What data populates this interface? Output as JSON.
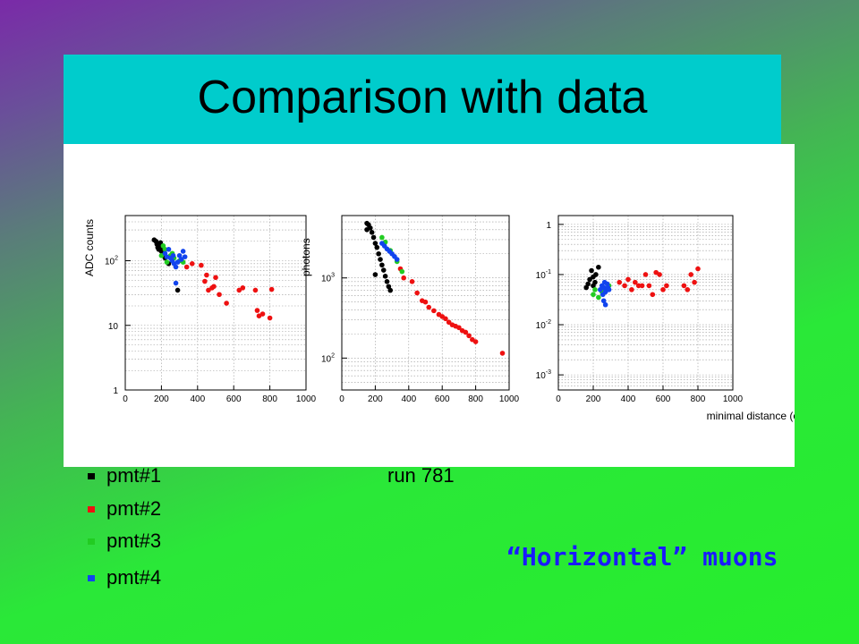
{
  "slide": {
    "title": "Comparison with data"
  },
  "legend": [
    {
      "label": "pmt#1",
      "color": "#000000"
    },
    {
      "label": "pmt#2",
      "color": "#ee1111"
    },
    {
      "label": "pmt#3",
      "color": "#22cc22"
    },
    {
      "label": "pmt#4",
      "color": "#1144ee"
    }
  ],
  "run_label": "run 781",
  "caption": "“Horizontal” muons",
  "chart_data": [
    {
      "type": "scatter",
      "ylabel": "ADC counts",
      "xlabel": "",
      "xlim": [
        0,
        1000
      ],
      "ylim": [
        1,
        500
      ],
      "yscale": "log",
      "grid": true,
      "xticks": [
        "0",
        "200",
        "400",
        "600",
        "800",
        "1000"
      ],
      "yticks": [
        {
          "v": 1,
          "base": "1",
          "exp": ""
        },
        {
          "v": 10,
          "base": "10",
          "exp": ""
        },
        {
          "v": 100,
          "base": "10",
          "exp": "2"
        }
      ],
      "series": [
        {
          "color": "#000000",
          "points": [
            [
              160,
              210
            ],
            [
              170,
              200
            ],
            [
              175,
              180
            ],
            [
              180,
              160
            ],
            [
              185,
              150
            ],
            [
              190,
              175
            ],
            [
              200,
              140
            ],
            [
              210,
              130
            ],
            [
              220,
              110
            ],
            [
              240,
              90
            ],
            [
              290,
              35
            ],
            [
              200,
              150
            ],
            [
              195,
              190
            ]
          ]
        },
        {
          "color": "#ee1111",
          "points": [
            [
              340,
              80
            ],
            [
              370,
              90
            ],
            [
              420,
              85
            ],
            [
              440,
              48
            ],
            [
              450,
              60
            ],
            [
              460,
              35
            ],
            [
              480,
              38
            ],
            [
              490,
              40
            ],
            [
              500,
              55
            ],
            [
              520,
              30
            ],
            [
              560,
              22
            ],
            [
              630,
              35
            ],
            [
              650,
              38
            ],
            [
              720,
              35
            ],
            [
              730,
              17
            ],
            [
              740,
              14
            ],
            [
              760,
              15
            ],
            [
              800,
              13
            ],
            [
              810,
              36
            ]
          ]
        },
        {
          "color": "#22cc22",
          "points": [
            [
              200,
              120
            ],
            [
              210,
              170
            ],
            [
              220,
              150
            ],
            [
              250,
              120
            ],
            [
              260,
              130
            ],
            [
              270,
              110
            ],
            [
              300,
              100
            ],
            [
              320,
              95
            ],
            [
              230,
              95
            ]
          ]
        },
        {
          "color": "#1144ee",
          "points": [
            [
              220,
              130
            ],
            [
              230,
              115
            ],
            [
              240,
              150
            ],
            [
              250,
              110
            ],
            [
              260,
              100
            ],
            [
              265,
              120
            ],
            [
              270,
              90
            ],
            [
              280,
              80
            ],
            [
              290,
              95
            ],
            [
              300,
              120
            ],
            [
              310,
              105
            ],
            [
              320,
              140
            ],
            [
              330,
              115
            ],
            [
              280,
              45
            ]
          ]
        }
      ]
    },
    {
      "type": "scatter",
      "ylabel": "photons",
      "xlabel": "",
      "xlim": [
        0,
        1000
      ],
      "ylim": [
        40,
        6000
      ],
      "yscale": "log",
      "grid": true,
      "xticks": [
        "0",
        "200",
        "400",
        "600",
        "800",
        "1000"
      ],
      "yticks": [
        {
          "v": 100,
          "base": "10",
          "exp": "2"
        },
        {
          "v": 1000,
          "base": "10",
          "exp": "3"
        }
      ],
      "series": [
        {
          "color": "#000000",
          "points": [
            [
              150,
              4800
            ],
            [
              160,
              4600
            ],
            [
              170,
              4200
            ],
            [
              180,
              3700
            ],
            [
              190,
              3200
            ],
            [
              200,
              2700
            ],
            [
              210,
              2400
            ],
            [
              220,
              2000
            ],
            [
              230,
              1700
            ],
            [
              240,
              1450
            ],
            [
              250,
              1250
            ],
            [
              260,
              1050
            ],
            [
              270,
              900
            ],
            [
              280,
              780
            ],
            [
              290,
              700
            ],
            [
              200,
              1100
            ],
            [
              150,
              4000
            ]
          ]
        },
        {
          "color": "#ee1111",
          "points": [
            [
              350,
              1300
            ],
            [
              370,
              1000
            ],
            [
              420,
              900
            ],
            [
              450,
              650
            ],
            [
              480,
              520
            ],
            [
              500,
              500
            ],
            [
              520,
              430
            ],
            [
              550,
              390
            ],
            [
              580,
              350
            ],
            [
              600,
              330
            ],
            [
              620,
              310
            ],
            [
              640,
              280
            ],
            [
              660,
              260
            ],
            [
              680,
              250
            ],
            [
              700,
              240
            ],
            [
              720,
              220
            ],
            [
              740,
              210
            ],
            [
              760,
              190
            ],
            [
              780,
              170
            ],
            [
              800,
              160
            ],
            [
              960,
              115
            ]
          ]
        },
        {
          "color": "#22cc22",
          "points": [
            [
              240,
              3200
            ],
            [
              260,
              2800
            ],
            [
              290,
              2200
            ],
            [
              330,
              1600
            ],
            [
              360,
              1200
            ]
          ]
        },
        {
          "color": "#1144ee",
          "points": [
            [
              240,
              2700
            ],
            [
              255,
              2500
            ],
            [
              270,
              2300
            ],
            [
              285,
              2150
            ],
            [
              300,
              2000
            ],
            [
              315,
              1850
            ],
            [
              330,
              1700
            ]
          ]
        }
      ]
    },
    {
      "type": "scatter",
      "ylabel": "",
      "xlabel": "minimal distance (cm)",
      "xlim": [
        0,
        1000
      ],
      "ylim": [
        0.0005,
        1.5
      ],
      "yscale": "log",
      "grid": true,
      "xticks": [
        "0",
        "200",
        "400",
        "600",
        "800",
        "1000"
      ],
      "yticks": [
        {
          "v": 0.001,
          "base": "10",
          "exp": "-3"
        },
        {
          "v": 0.01,
          "base": "10",
          "exp": "-2"
        },
        {
          "v": 0.1,
          "base": "10",
          "exp": "-1"
        },
        {
          "v": 1,
          "base": "1",
          "exp": ""
        }
      ],
      "series": [
        {
          "color": "#000000",
          "points": [
            [
              160,
              0.055
            ],
            [
              170,
              0.065
            ],
            [
              180,
              0.08
            ],
            [
              190,
              0.12
            ],
            [
              200,
              0.09
            ],
            [
              210,
              0.07
            ],
            [
              215,
              0.1
            ],
            [
              230,
              0.14
            ],
            [
              200,
              0.06
            ]
          ]
        },
        {
          "color": "#ee1111",
          "points": [
            [
              350,
              0.07
            ],
            [
              380,
              0.06
            ],
            [
              400,
              0.08
            ],
            [
              420,
              0.05
            ],
            [
              440,
              0.07
            ],
            [
              460,
              0.06
            ],
            [
              480,
              0.06
            ],
            [
              500,
              0.1
            ],
            [
              520,
              0.06
            ],
            [
              540,
              0.04
            ],
            [
              560,
              0.11
            ],
            [
              580,
              0.1
            ],
            [
              600,
              0.05
            ],
            [
              620,
              0.06
            ],
            [
              720,
              0.06
            ],
            [
              740,
              0.05
            ],
            [
              760,
              0.1
            ],
            [
              780,
              0.07
            ],
            [
              800,
              0.13
            ]
          ]
        },
        {
          "color": "#22cc22",
          "points": [
            [
              200,
              0.04
            ],
            [
              210,
              0.05
            ],
            [
              230,
              0.035
            ],
            [
              250,
              0.045
            ],
            [
              270,
              0.05
            ],
            [
              290,
              0.06
            ]
          ]
        },
        {
          "color": "#1144ee",
          "points": [
            [
              240,
              0.05
            ],
            [
              250,
              0.06
            ],
            [
              255,
              0.04
            ],
            [
              260,
              0.055
            ],
            [
              265,
              0.07
            ],
            [
              270,
              0.045
            ],
            [
              275,
              0.05
            ],
            [
              280,
              0.065
            ],
            [
              285,
              0.055
            ],
            [
              290,
              0.05
            ],
            [
              260,
              0.03
            ],
            [
              270,
              0.025
            ]
          ]
        }
      ]
    }
  ]
}
